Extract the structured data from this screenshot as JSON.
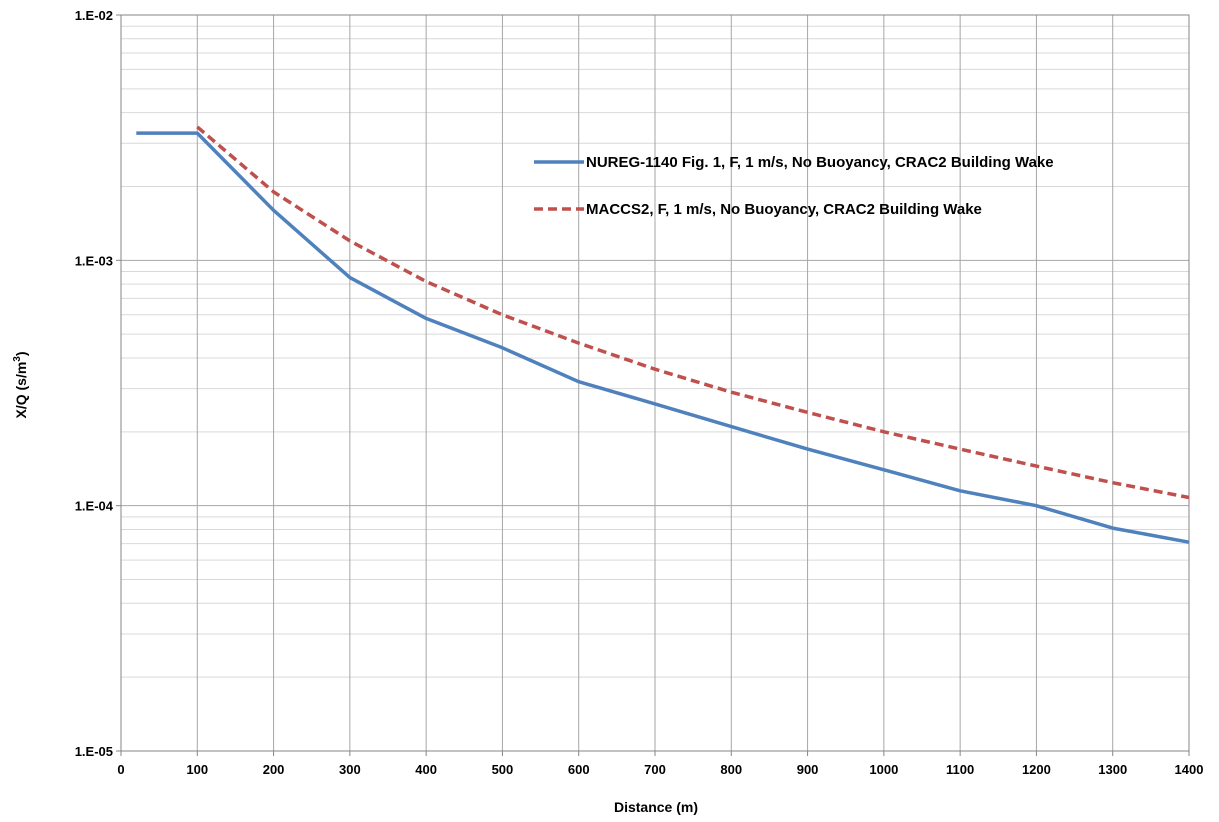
{
  "chart_data": {
    "type": "line",
    "xlabel": "Distance (m)",
    "ylabel_main": "X/Q (s/m",
    "ylabel_sup": "3",
    "ylabel_close": ")",
    "xlim": [
      0,
      1400
    ],
    "x_major_step": 100,
    "ylim": [
      1e-05,
      0.01
    ],
    "y_scale": "log",
    "x_ticks": [
      0,
      100,
      200,
      300,
      400,
      500,
      600,
      700,
      800,
      900,
      1000,
      1100,
      1200,
      1300,
      1400
    ],
    "x_tick_labels": [
      "0",
      "100",
      "200",
      "300",
      "400",
      "500",
      "600",
      "700",
      "800",
      "900",
      "1000",
      "1100",
      "1200",
      "1300",
      "1400"
    ],
    "y_ticks": [
      1e-05,
      0.0001,
      0.001,
      0.01
    ],
    "y_tick_labels": [
      "1.E-05",
      "1.E-04",
      "1.E-03",
      "1.E-02"
    ],
    "grid": true,
    "legend_position": "top-right",
    "series": [
      {
        "name": "NUREG-1140 Fig. 1, F, 1 m/s, No Buoyancy, CRAC2 Building Wake",
        "color": "#4f81bd",
        "style": "solid",
        "x": [
          20,
          100,
          200,
          300,
          400,
          500,
          600,
          700,
          800,
          900,
          1000,
          1100,
          1200,
          1300,
          1400
        ],
        "y": [
          0.0033,
          0.0033,
          0.0016,
          0.00085,
          0.00058,
          0.00044,
          0.00032,
          0.00026,
          0.00021,
          0.00017,
          0.00014,
          0.000115,
          0.0001,
          8.1e-05,
          7.1e-05
        ]
      },
      {
        "name": "MACCS2, F, 1 m/s, No Buoyancy, CRAC2 Building Wake",
        "color": "#c0504d",
        "style": "dashed",
        "x": [
          100,
          200,
          300,
          400,
          500,
          600,
          700,
          800,
          900,
          1000,
          1100,
          1200,
          1300,
          1400
        ],
        "y": [
          0.0035,
          0.0019,
          0.0012,
          0.00082,
          0.0006,
          0.00046,
          0.00036,
          0.00029,
          0.00024,
          0.0002,
          0.00017,
          0.000145,
          0.000124,
          0.000108
        ]
      }
    ]
  }
}
